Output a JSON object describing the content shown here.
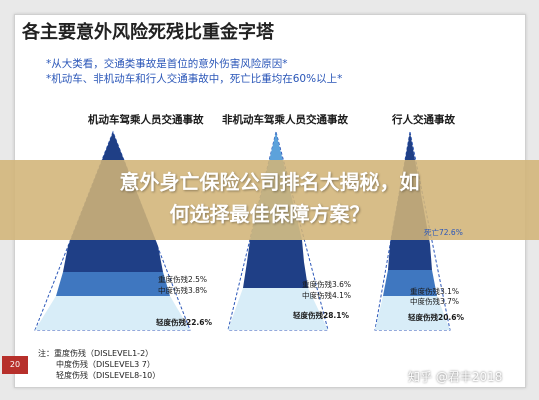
{
  "title": "各主要意外风险死残比重金字塔",
  "notes": [
    "*从大类看，交通类事故是首位的意外伤害风险原因*",
    "*机动车、非机动车和行人交通事故中，死亡比重均在60%以上*"
  ],
  "sections": [
    {
      "title": "机动车驾乘人员交通事故",
      "labels": [
        "重度伤残2.5%",
        "中度伤残3.8%",
        "轻度伤残22.6%"
      ]
    },
    {
      "title": "非机动车驾乘人员交通事故",
      "labels": [
        "重度伤残3.6%",
        "中度伤残4.1%",
        "轻度伤残28.1%"
      ]
    },
    {
      "title": "行人交通事故",
      "death_label": "死亡72.6%",
      "labels": [
        "重度伤残3.1%",
        "中度伤残3.7%",
        "轻度伤残20.6%"
      ]
    }
  ],
  "banner": {
    "line1": "意外身亡保险公司排名大揭秘，如",
    "line2": "何选择最佳保障方案？"
  },
  "footer": [
    "注：重度伤残（DISLEVEL1-2）",
    "中度伤残（DISLEVEL3 7）",
    "轻度伤残（DISLEVEL8-10）"
  ],
  "page_number": "20",
  "watermark": "知乎 @君丰2018",
  "colors": {
    "dark": "#1f3f86",
    "mid": "#5ca2db",
    "light": "#d8edf8",
    "death_outline": "#2a56b8",
    "banner": "#d2b478"
  }
}
